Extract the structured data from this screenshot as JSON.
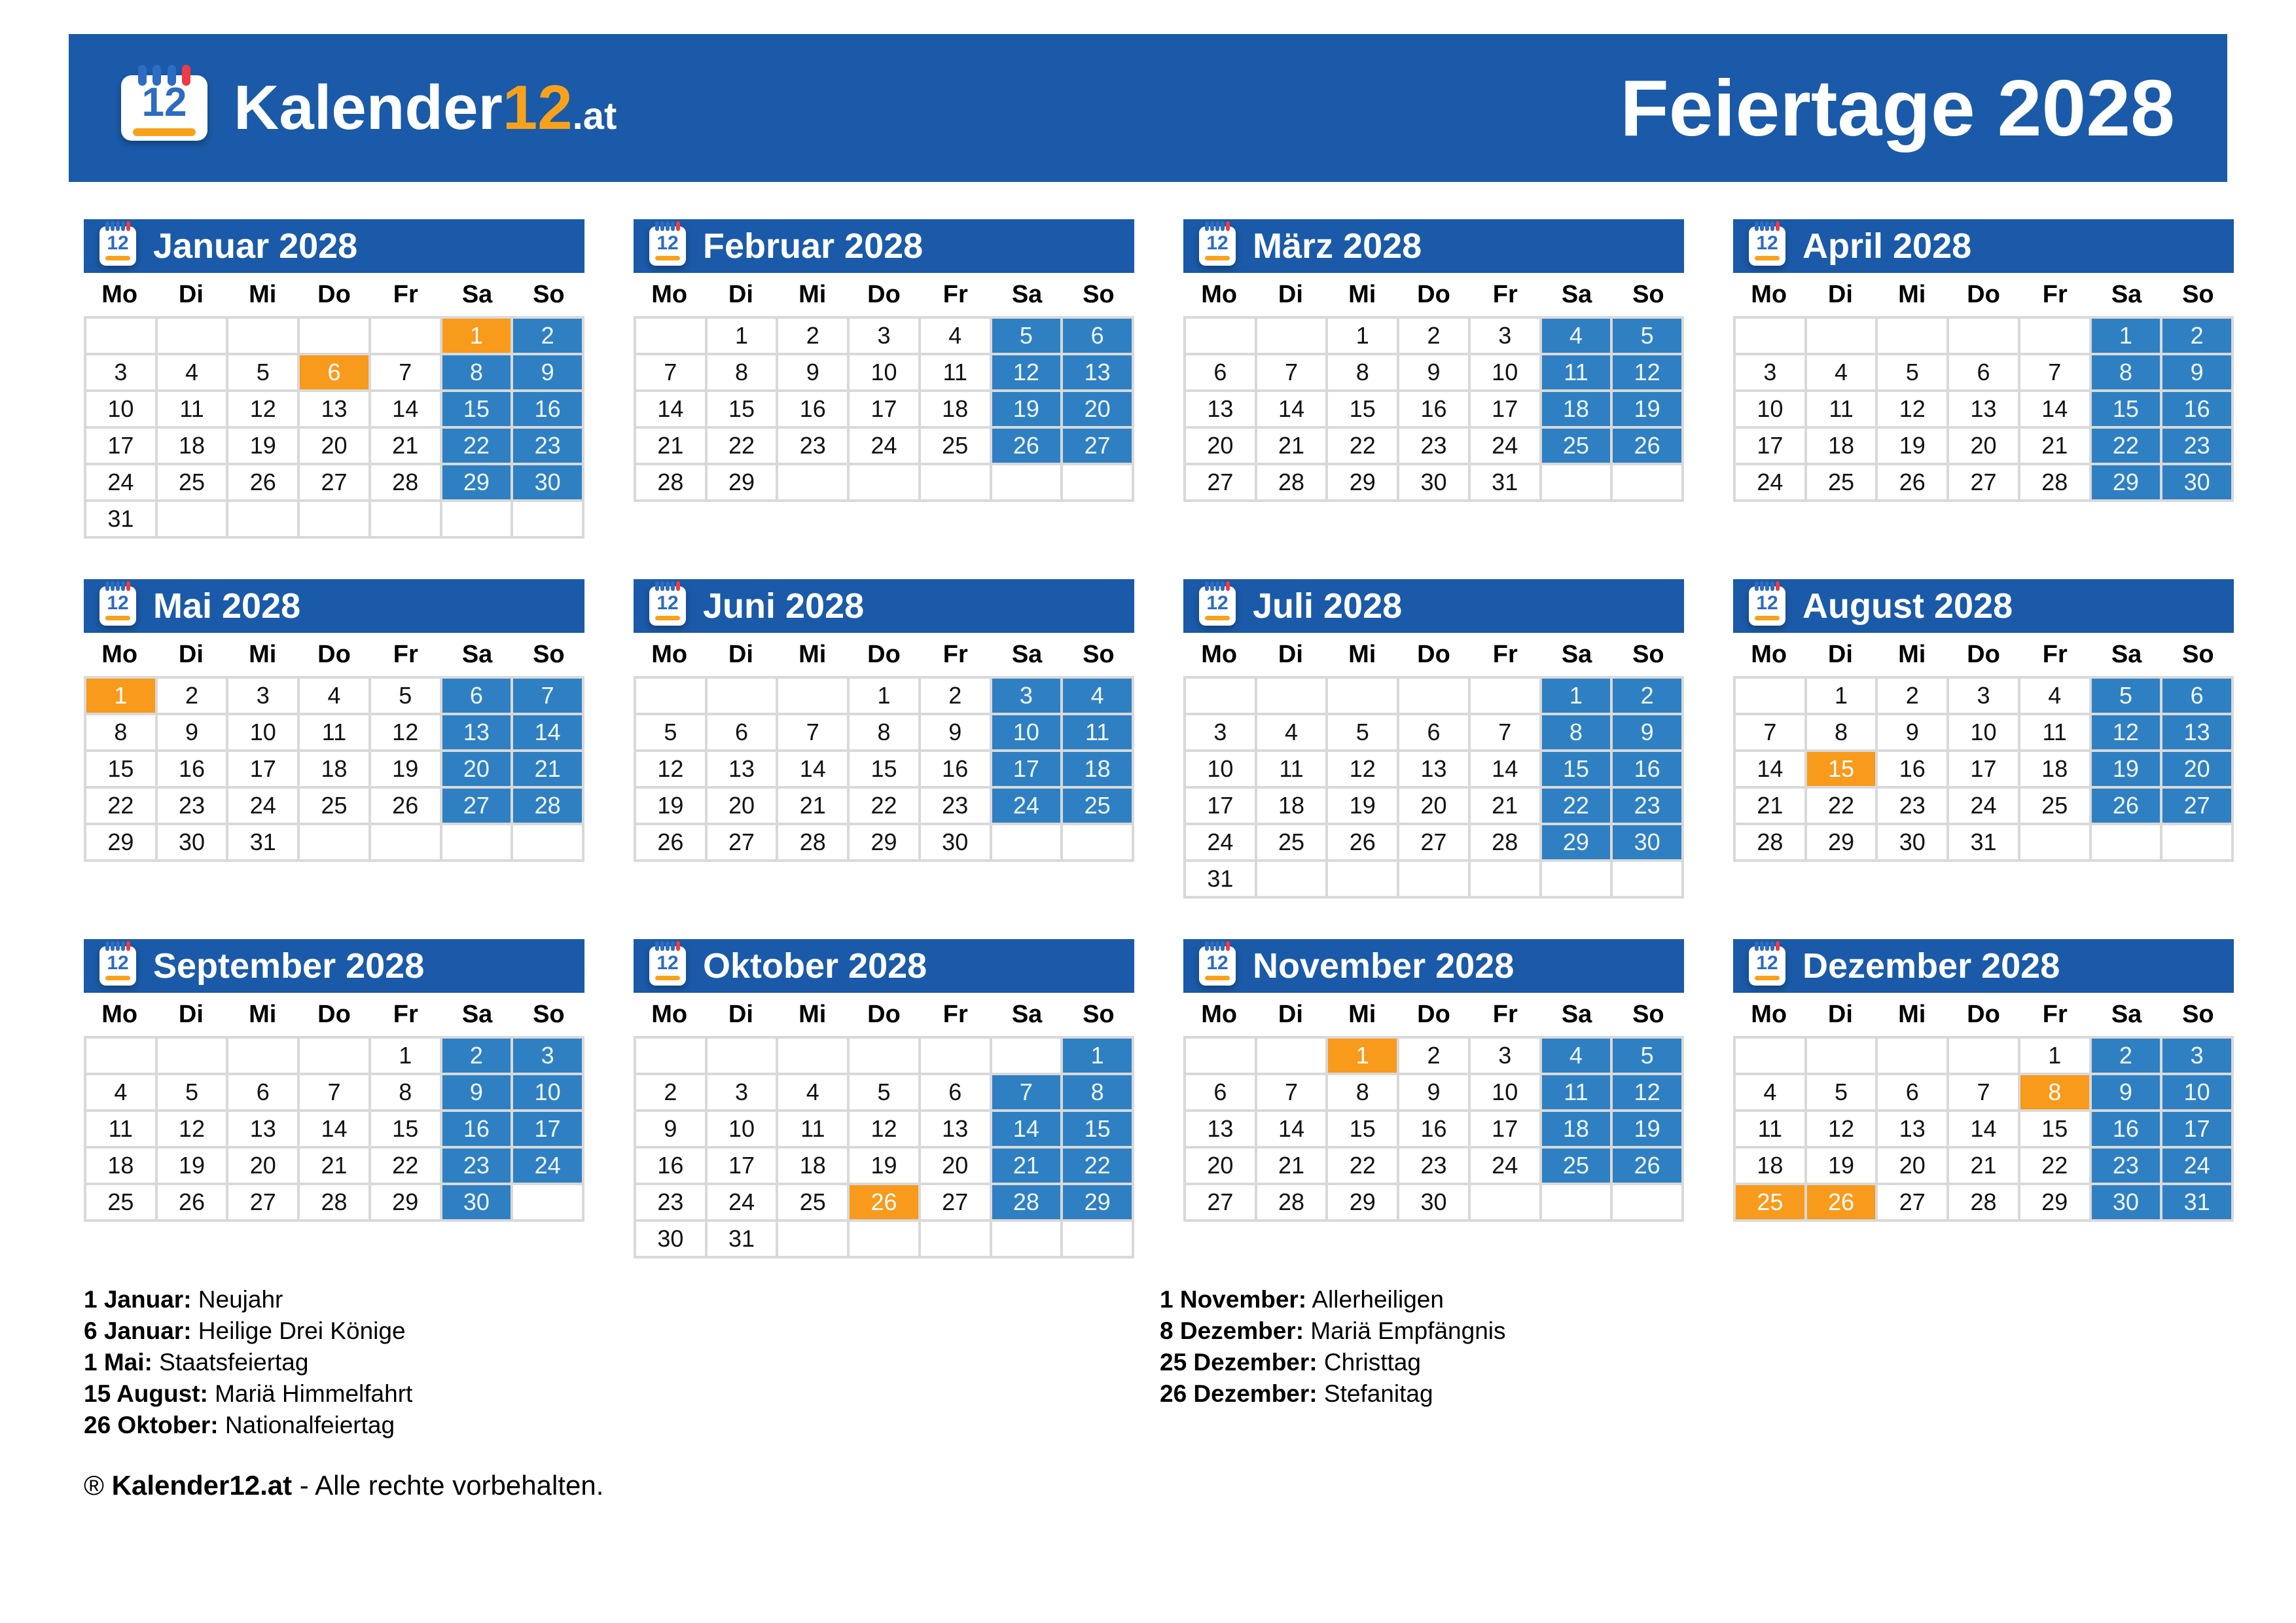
{
  "banner": {
    "logo": {
      "icon_number": "12",
      "brand_main": "Kalender",
      "brand_number": "12",
      "brand_suffix": ".at"
    },
    "title": "Feiertage 2028"
  },
  "weekdays": [
    "Mo",
    "Di",
    "Mi",
    "Do",
    "Fr",
    "Sa",
    "So"
  ],
  "months": [
    {
      "name": "Januar 2028",
      "first_dow": 5,
      "days": 31,
      "holidays": [
        1,
        6
      ]
    },
    {
      "name": "Februar 2028",
      "first_dow": 1,
      "days": 29,
      "holidays": []
    },
    {
      "name": "März 2028",
      "first_dow": 2,
      "days": 31,
      "holidays": []
    },
    {
      "name": "April 2028",
      "first_dow": 5,
      "days": 30,
      "holidays": []
    },
    {
      "name": "Mai 2028",
      "first_dow": 0,
      "days": 31,
      "holidays": [
        1
      ]
    },
    {
      "name": "Juni 2028",
      "first_dow": 3,
      "days": 30,
      "holidays": []
    },
    {
      "name": "Juli 2028",
      "first_dow": 5,
      "days": 31,
      "holidays": []
    },
    {
      "name": "August 2028",
      "first_dow": 1,
      "days": 31,
      "holidays": [
        15
      ]
    },
    {
      "name": "September 2028",
      "first_dow": 4,
      "days": 30,
      "holidays": []
    },
    {
      "name": "Oktober 2028",
      "first_dow": 6,
      "days": 31,
      "holidays": [
        26
      ]
    },
    {
      "name": "November 2028",
      "first_dow": 2,
      "days": 30,
      "holidays": [
        1
      ]
    },
    {
      "name": "Dezember 2028",
      "first_dow": 4,
      "days": 31,
      "holidays": [
        8,
        25,
        26
      ]
    }
  ],
  "legend": {
    "left": [
      {
        "date": "1 Januar:",
        "name": "Neujahr"
      },
      {
        "date": "6 Januar:",
        "name": "Heilige Drei Könige"
      },
      {
        "date": "1 Mai:",
        "name": "Staatsfeiertag"
      },
      {
        "date": "15 August:",
        "name": "Mariä Himmelfahrt"
      },
      {
        "date": "26 Oktober:",
        "name": "Nationalfeiertag"
      }
    ],
    "right": [
      {
        "date": "1 November:",
        "name": "Allerheiligen"
      },
      {
        "date": "8 Dezember:",
        "name": "Mariä Empfängnis"
      },
      {
        "date": "25 Dezember:",
        "name": "Christtag"
      },
      {
        "date": "26 Dezember:",
        "name": "Stefanitag"
      }
    ]
  },
  "footer": {
    "symbol": "®",
    "brand": "Kalender12.at",
    "text": " - Alle rechte vorbehalten."
  },
  "colors": {
    "banner_blue": "#1a5aa8",
    "weekend_blue": "#2f80c2",
    "holiday_orange": "#f89a1c",
    "grid_line": "#d9d9d9",
    "icon_blue": "#2d6cc0",
    "icon_red": "#ee3b43",
    "icon_orange": "#f8a21b"
  },
  "layout": {
    "month_col_lefts": [
      128,
      968,
      1808,
      2648
    ],
    "month_row_tops": [
      335,
      885,
      1435
    ]
  }
}
